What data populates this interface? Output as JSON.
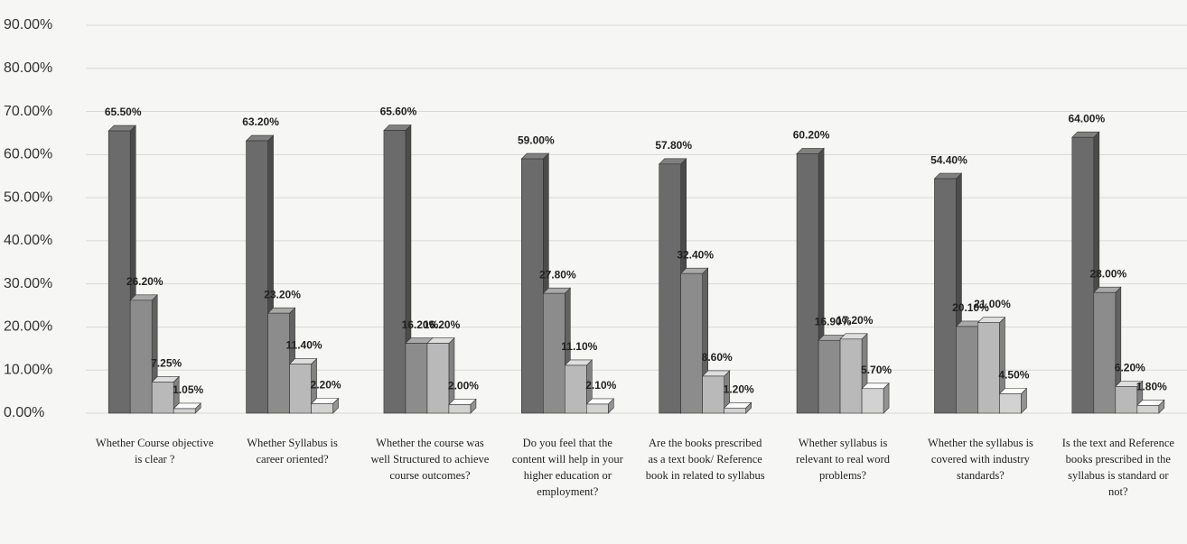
{
  "chart_data": {
    "type": "bar",
    "categories": [
      "Whether Course objective is clear ?",
      "Whether Syllabus is career oriented?",
      "Whether the course was well Structured to achieve course outcomes?",
      "Do you feel that the content will help in your higher education or employment?",
      "Are the books prescribed as a text book/ Reference book in related to syllabus",
      "Whether syllabus is relevant to real word problems?",
      "Whether the syllabus is covered with industry standards?",
      "Is the text and Reference books prescribed in the syllabus is standard or not?"
    ],
    "series": [
      {
        "color": "#6b6b6b",
        "values": [
          65.5,
          63.2,
          65.6,
          59.0,
          57.8,
          60.2,
          54.4,
          64.0
        ],
        "value_labels": [
          "65.50%",
          "63.20%",
          "65.60%",
          "59.00%",
          "57.80%",
          "60.20%",
          "54.40%",
          "64.00%"
        ]
      },
      {
        "color": "#8c8c8c",
        "values": [
          26.2,
          23.2,
          16.2,
          27.8,
          32.4,
          16.9,
          20.1,
          28.0
        ],
        "value_labels": [
          "26.20%",
          "23.20%",
          "16.20%",
          "27.80%",
          "32.40%",
          "16.90%",
          "20.10%",
          "28.00%"
        ]
      },
      {
        "color": "#b9b9b9",
        "values": [
          7.25,
          11.4,
          16.2,
          11.1,
          8.6,
          17.2,
          21.0,
          6.2
        ],
        "value_labels": [
          "7.25%",
          "11.40%",
          "16.20%",
          "11.10%",
          "8.60%",
          "17.20%",
          "21.00%",
          "6.20%"
        ]
      },
      {
        "color": "#d2d2d2",
        "values": [
          1.05,
          2.2,
          2.0,
          2.1,
          1.2,
          5.7,
          4.5,
          1.8
        ],
        "value_labels": [
          "1.05%",
          "2.20%",
          "2.00%",
          "2.10%",
          "1.20%",
          "5.70%",
          "4.50%",
          "1.80%"
        ]
      }
    ],
    "ylim": [
      0,
      90
    ],
    "yticks": [
      {
        "value": 0,
        "label": "0.00%"
      },
      {
        "value": 10,
        "label": "10.00%"
      },
      {
        "value": 20,
        "label": "20.00%"
      },
      {
        "value": 30,
        "label": "30.00%"
      },
      {
        "value": 40,
        "label": "40.00%"
      },
      {
        "value": 50,
        "label": "50.00%"
      },
      {
        "value": 60,
        "label": "60.00%"
      },
      {
        "value": 70,
        "label": "70.00%"
      },
      {
        "value": 80,
        "label": "80.00%"
      },
      {
        "value": 90,
        "label": "90.00%"
      }
    ],
    "grid": true
  }
}
